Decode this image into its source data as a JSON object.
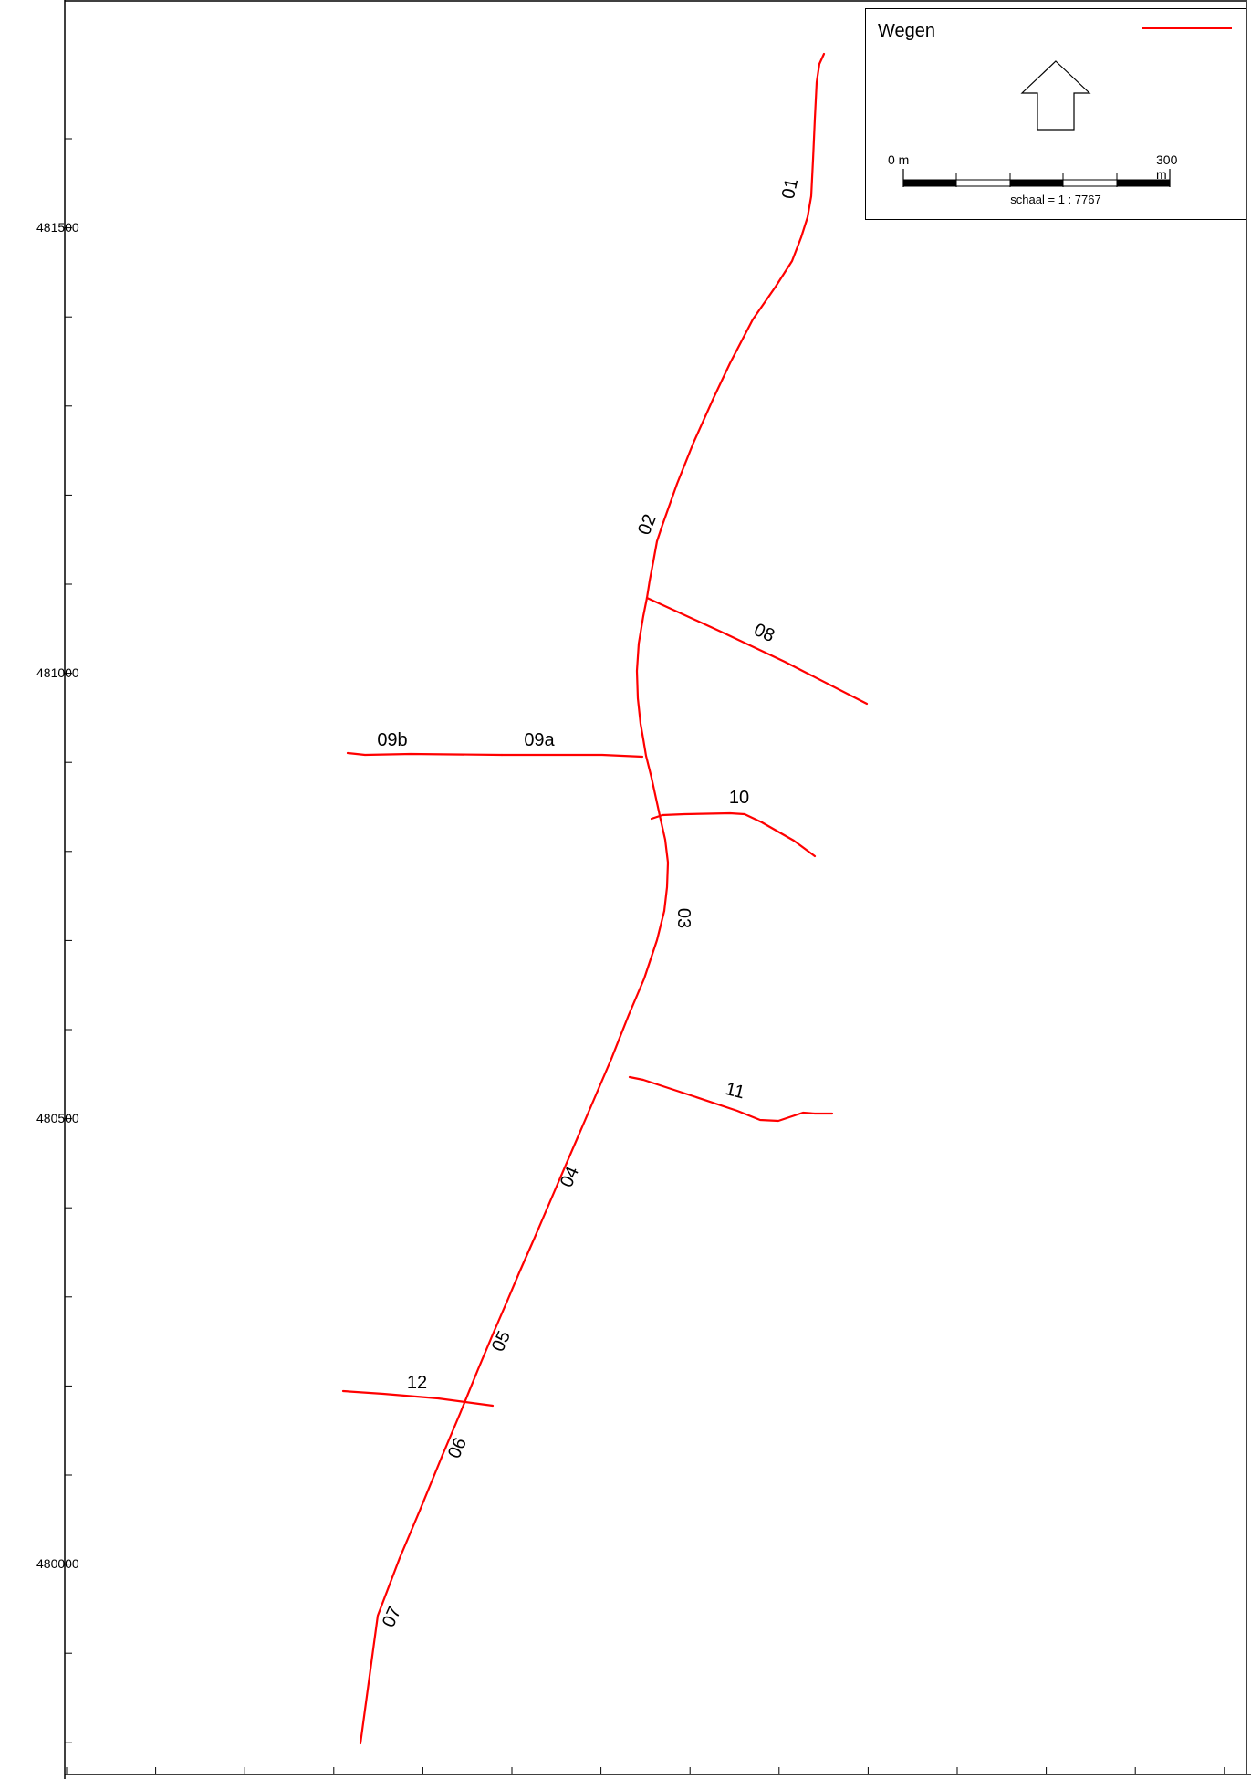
{
  "legend": {
    "title": "Wegen",
    "line_color": "#ff0000",
    "scalebar": {
      "start_label": "0 m",
      "end_label": "300 m",
      "scale_text": "schaal = 1 : 7767"
    }
  },
  "axis": {
    "y_labels": [
      "481500",
      "481000",
      "480500",
      "480000"
    ]
  },
  "roads": [
    {
      "id": "01",
      "label": "01"
    },
    {
      "id": "02",
      "label": "02"
    },
    {
      "id": "03",
      "label": "03"
    },
    {
      "id": "04",
      "label": "04"
    },
    {
      "id": "05",
      "label": "05"
    },
    {
      "id": "06",
      "label": "06"
    },
    {
      "id": "07",
      "label": "07"
    },
    {
      "id": "08",
      "label": "08"
    },
    {
      "id": "09a",
      "label": "09a"
    },
    {
      "id": "09b",
      "label": "09b"
    },
    {
      "id": "10",
      "label": "10"
    },
    {
      "id": "11",
      "label": "11"
    },
    {
      "id": "12",
      "label": "12"
    }
  ],
  "colors": {
    "road": "#ff0000",
    "frame": "#000000",
    "background": "#ffffff"
  }
}
